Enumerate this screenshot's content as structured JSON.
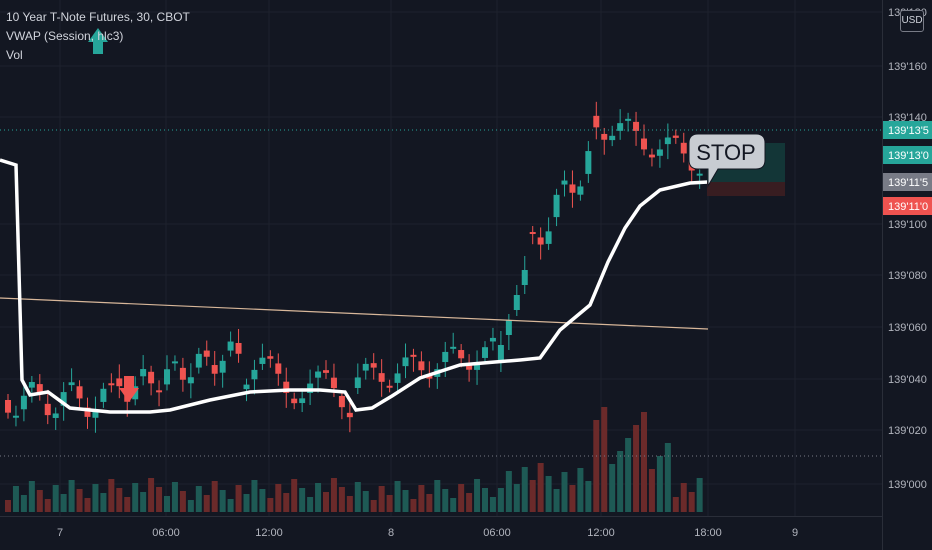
{
  "legend": {
    "symbol": "10 Year T-Note Futures, 30, CBOT",
    "indicator": "VWAP (Session, hlc3)",
    "volume": "Vol"
  },
  "currency_button": "USD",
  "colors": {
    "background": "#131722",
    "up": "#26a69a",
    "down": "#ef5350",
    "up_volume": "#1e5a55",
    "down_volume": "#6b2a2a",
    "vwap": "#ffffff",
    "trendline": "#d8b79a",
    "grid": "#1e222d",
    "axis_text": "#b2b5be"
  },
  "chart_data": {
    "type": "candlestick",
    "title": "10 Year T-Note Futures, 30, CBOT",
    "price_axis_ticks": [
      "139'000",
      "139'020",
      "139'040",
      "139'060",
      "139'080",
      "139'100",
      "139'140",
      "139'160",
      "139'180"
    ],
    "time_axis_ticks": [
      "7",
      "06:00",
      "12:00",
      "8",
      "06:00",
      "12:00",
      "18:00",
      "9"
    ],
    "price_labels": [
      {
        "label": "139'13'5",
        "kind": "teal"
      },
      {
        "label": "139'13'0",
        "kind": "teal"
      },
      {
        "label": "139'11'5",
        "kind": "gray"
      },
      {
        "label": "139'11'0",
        "kind": "red"
      }
    ],
    "annotations": [
      {
        "text": "STOP",
        "kind": "callout"
      },
      {
        "text": "",
        "kind": "down-arrow"
      },
      {
        "text": "",
        "kind": "up-arrow"
      }
    ],
    "series": [
      {
        "name": "VWAP (Session, hlc3)",
        "kind": "line"
      },
      {
        "name": "Vol",
        "kind": "volume"
      }
    ]
  }
}
